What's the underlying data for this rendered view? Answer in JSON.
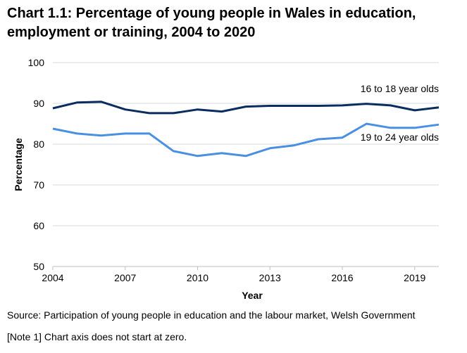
{
  "title_lines": [
    "Chart 1.1: Percentage of young people in Wales in education,",
    "employment or training, 2004 to 2020"
  ],
  "source": "Source: Participation of young people in education and the labour market, Welsh Government",
  "note": "[Note 1] Chart axis does not start at zero.",
  "colors": {
    "series_16_18": "#0b2c5e",
    "series_19_24": "#4a90e2",
    "gridline": "#d9d9d9",
    "axis": "#bfbfbf"
  },
  "chart_data": {
    "type": "line",
    "title": "Chart 1.1: Percentage of young people in Wales in education, employment or training, 2004 to 2020",
    "xlabel": "Year",
    "ylabel": "Percentage",
    "xlim": [
      2004,
      2020
    ],
    "ylim": [
      50,
      100
    ],
    "yticks": [
      50,
      60,
      70,
      80,
      90,
      100
    ],
    "xticks": [
      2004,
      2007,
      2010,
      2013,
      2016,
      2019
    ],
    "grid": true,
    "legend": "inline labels at right",
    "x": [
      2004,
      2005,
      2006,
      2007,
      2008,
      2009,
      2010,
      2011,
      2012,
      2013,
      2014,
      2015,
      2016,
      2017,
      2018,
      2019,
      2020
    ],
    "series": [
      {
        "name": "16 to 18 year olds",
        "color": "#0b2c5e",
        "values": [
          88.8,
          90.2,
          90.4,
          88.5,
          87.6,
          87.6,
          88.5,
          88.0,
          89.2,
          89.4,
          89.4,
          89.4,
          89.5,
          89.9,
          89.5,
          88.3,
          89.0
        ]
      },
      {
        "name": "19 to 24 year olds",
        "color": "#4a90e2",
        "values": [
          83.8,
          82.6,
          82.1,
          82.6,
          82.6,
          78.3,
          77.1,
          77.8,
          77.1,
          79.0,
          79.7,
          81.2,
          81.6,
          85.0,
          84.0,
          84.0,
          84.8
        ]
      }
    ]
  }
}
